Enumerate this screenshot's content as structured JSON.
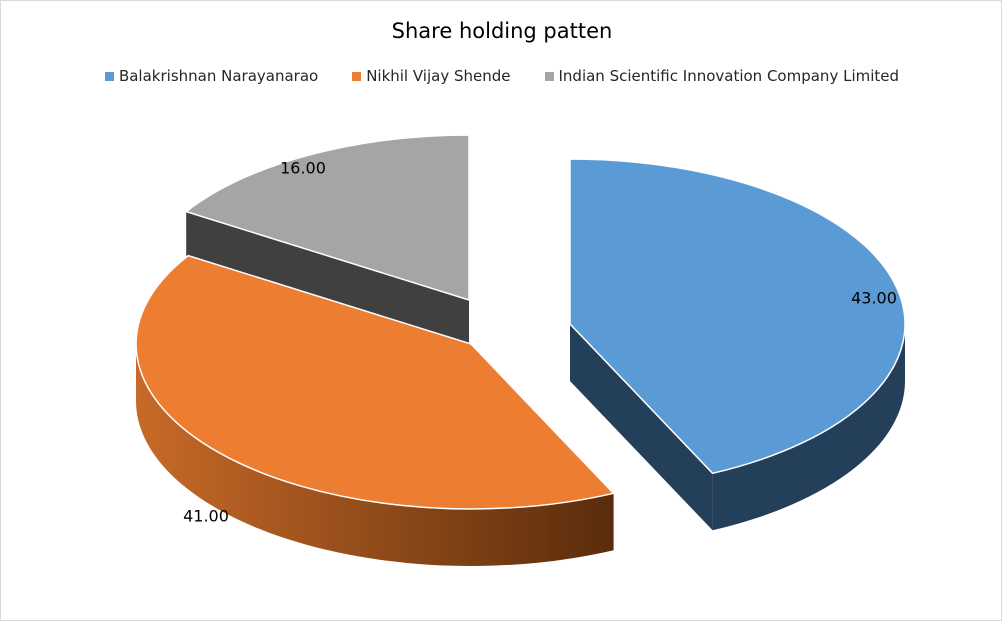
{
  "chart_data": {
    "type": "pie",
    "title": "Share holding patten",
    "legend_position": "top",
    "categories": [
      "Balakrishnan Narayanarao",
      "Nikhil Vijay Shende",
      "Indian Scientific Innovation Company Limited"
    ],
    "values": [
      43.0,
      41.0,
      16.0
    ],
    "data_labels": [
      "43.00",
      "41.00",
      "16.00"
    ],
    "colors": [
      "#5b9bd5",
      "#ed7d31",
      "#a5a5a5"
    ],
    "side_colors": [
      "#243f5a",
      "#8e4a1d",
      "#404040"
    ],
    "exploded": true,
    "three_d": true
  }
}
